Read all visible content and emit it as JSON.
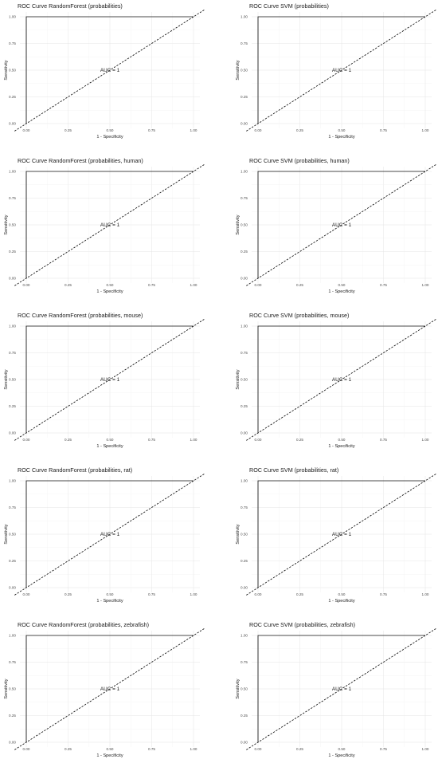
{
  "chart_data": [
    {
      "type": "line",
      "title": "ROC Curve RandomForest (probabilities)",
      "xlabel": "1 - Specificity",
      "ylabel": "Sensitivity",
      "xlim": [
        0,
        1
      ],
      "ylim": [
        0,
        1
      ],
      "xticks": [
        "0.00",
        "0.25",
        "0.50",
        "0.75",
        "1.00"
      ],
      "yticks": [
        "0.00",
        "0.25",
        "0.50",
        "0.75",
        "1.00"
      ],
      "grid": true,
      "annotation": "AUC = 1",
      "series": [
        {
          "style": "solid",
          "x": [
            0,
            0,
            1
          ],
          "y": [
            0,
            1,
            1
          ]
        },
        {
          "style": "dashed",
          "x": [
            0,
            1
          ],
          "y": [
            0,
            1
          ]
        }
      ]
    },
    {
      "type": "line",
      "title": "ROC Curve SVM (probabilities)",
      "xlabel": "1 - Specificity",
      "ylabel": "Sensitivity",
      "xlim": [
        0,
        1
      ],
      "ylim": [
        0,
        1
      ],
      "xticks": [
        "0.00",
        "0.25",
        "0.50",
        "0.75",
        "1.00"
      ],
      "yticks": [
        "0.00",
        "0.25",
        "0.50",
        "0.75",
        "1.00"
      ],
      "grid": true,
      "annotation": "AUC = 1",
      "series": [
        {
          "style": "solid",
          "x": [
            0,
            0,
            1
          ],
          "y": [
            0,
            1,
            1
          ]
        },
        {
          "style": "dashed",
          "x": [
            0,
            1
          ],
          "y": [
            0,
            1
          ]
        }
      ]
    },
    {
      "type": "line",
      "title": "ROC Curve RandomForest (probabilities, human)",
      "xlabel": "1 - Specificity",
      "ylabel": "Sensitivity",
      "xlim": [
        0,
        1
      ],
      "ylim": [
        0,
        1
      ],
      "xticks": [
        "0.00",
        "0.25",
        "0.50",
        "0.75",
        "1.00"
      ],
      "yticks": [
        "0.00",
        "0.25",
        "0.50",
        "0.75",
        "1.00"
      ],
      "grid": true,
      "annotation": "AUC = 1",
      "series": [
        {
          "style": "solid",
          "x": [
            0,
            0,
            1
          ],
          "y": [
            0,
            1,
            1
          ]
        },
        {
          "style": "dashed",
          "x": [
            0,
            1
          ],
          "y": [
            0,
            1
          ]
        }
      ]
    },
    {
      "type": "line",
      "title": "ROC Curve SVM (probabilities, human)",
      "xlabel": "1 - Specificity",
      "ylabel": "Sensitivity",
      "xlim": [
        0,
        1
      ],
      "ylim": [
        0,
        1
      ],
      "xticks": [
        "0.00",
        "0.25",
        "0.50",
        "0.75",
        "1.00"
      ],
      "yticks": [
        "0.00",
        "0.25",
        "0.50",
        "0.75",
        "1.00"
      ],
      "grid": true,
      "annotation": "AUC = 1",
      "series": [
        {
          "style": "solid",
          "x": [
            0,
            0,
            1
          ],
          "y": [
            0,
            1,
            1
          ]
        },
        {
          "style": "dashed",
          "x": [
            0,
            1
          ],
          "y": [
            0,
            1
          ]
        }
      ]
    },
    {
      "type": "line",
      "title": "ROC Curve RandomForest (probabilities, mouse)",
      "xlabel": "1 - Specificity",
      "ylabel": "Sensitivity",
      "xlim": [
        0,
        1
      ],
      "ylim": [
        0,
        1
      ],
      "xticks": [
        "0.00",
        "0.25",
        "0.50",
        "0.75",
        "1.00"
      ],
      "yticks": [
        "0.00",
        "0.25",
        "0.50",
        "0.75",
        "1.00"
      ],
      "grid": true,
      "annotation": "AUC = 1",
      "series": [
        {
          "style": "solid",
          "x": [
            0,
            0,
            1
          ],
          "y": [
            0,
            1,
            1
          ]
        },
        {
          "style": "dashed",
          "x": [
            0,
            1
          ],
          "y": [
            0,
            1
          ]
        }
      ]
    },
    {
      "type": "line",
      "title": "ROC Curve SVM (probabilities, mouse)",
      "xlabel": "1 - Specificity",
      "ylabel": "Sensitivity",
      "xlim": [
        0,
        1
      ],
      "ylim": [
        0,
        1
      ],
      "xticks": [
        "0.00",
        "0.25",
        "0.50",
        "0.75",
        "1.00"
      ],
      "yticks": [
        "0.00",
        "0.25",
        "0.50",
        "0.75",
        "1.00"
      ],
      "grid": true,
      "annotation": "AUC = 1",
      "series": [
        {
          "style": "solid",
          "x": [
            0,
            0,
            1
          ],
          "y": [
            0,
            1,
            1
          ]
        },
        {
          "style": "dashed",
          "x": [
            0,
            1
          ],
          "y": [
            0,
            1
          ]
        }
      ]
    },
    {
      "type": "line",
      "title": "ROC Curve RandomForest (probabilities, rat)",
      "xlabel": "1 - Specificity",
      "ylabel": "Sensitivity",
      "xlim": [
        0,
        1
      ],
      "ylim": [
        0,
        1
      ],
      "xticks": [
        "0.00",
        "0.25",
        "0.50",
        "0.75",
        "1.00"
      ],
      "yticks": [
        "0.00",
        "0.25",
        "0.50",
        "0.75",
        "1.00"
      ],
      "grid": true,
      "annotation": "AUC = 1",
      "series": [
        {
          "style": "solid",
          "x": [
            0,
            0,
            1
          ],
          "y": [
            0,
            1,
            1
          ]
        },
        {
          "style": "dashed",
          "x": [
            0,
            1
          ],
          "y": [
            0,
            1
          ]
        }
      ]
    },
    {
      "type": "line",
      "title": "ROC Curve SVM (probabilities, rat)",
      "xlabel": "1 - Specificity",
      "ylabel": "Sensitivity",
      "xlim": [
        0,
        1
      ],
      "ylim": [
        0,
        1
      ],
      "xticks": [
        "0.00",
        "0.25",
        "0.50",
        "0.75",
        "1.00"
      ],
      "yticks": [
        "0.00",
        "0.25",
        "0.50",
        "0.75",
        "1.00"
      ],
      "grid": true,
      "annotation": "AUC = 1",
      "series": [
        {
          "style": "solid",
          "x": [
            0,
            0,
            1
          ],
          "y": [
            0,
            1,
            1
          ]
        },
        {
          "style": "dashed",
          "x": [
            0,
            1
          ],
          "y": [
            0,
            1
          ]
        }
      ]
    },
    {
      "type": "line",
      "title": "ROC Curve RandomForest (probabilities, zebrafish)",
      "xlabel": "1 - Specificity",
      "ylabel": "Sensitivity",
      "xlim": [
        0,
        1
      ],
      "ylim": [
        0,
        1
      ],
      "xticks": [
        "0.00",
        "0.25",
        "0.50",
        "0.75",
        "1.00"
      ],
      "yticks": [
        "0.00",
        "0.25",
        "0.50",
        "0.75",
        "1.00"
      ],
      "grid": true,
      "annotation": "AUC = 1",
      "series": [
        {
          "style": "solid",
          "x": [
            0,
            0,
            1
          ],
          "y": [
            0,
            1,
            1
          ]
        },
        {
          "style": "dashed",
          "x": [
            0,
            1
          ],
          "y": [
            0,
            1
          ]
        }
      ]
    },
    {
      "type": "line",
      "title": "ROC Curve SVM (probabilities, zebrafish)",
      "xlabel": "1 - Specificity",
      "ylabel": "Sensitivity",
      "xlim": [
        0,
        1
      ],
      "ylim": [
        0,
        1
      ],
      "xticks": [
        "0.00",
        "0.25",
        "0.50",
        "0.75",
        "1.00"
      ],
      "yticks": [
        "0.00",
        "0.25",
        "0.50",
        "0.75",
        "1.00"
      ],
      "grid": true,
      "annotation": "AUC = 1",
      "series": [
        {
          "style": "solid",
          "x": [
            0,
            0,
            1
          ],
          "y": [
            0,
            1,
            1
          ]
        },
        {
          "style": "dashed",
          "x": [
            0,
            1
          ],
          "y": [
            0,
            1
          ]
        }
      ]
    }
  ]
}
